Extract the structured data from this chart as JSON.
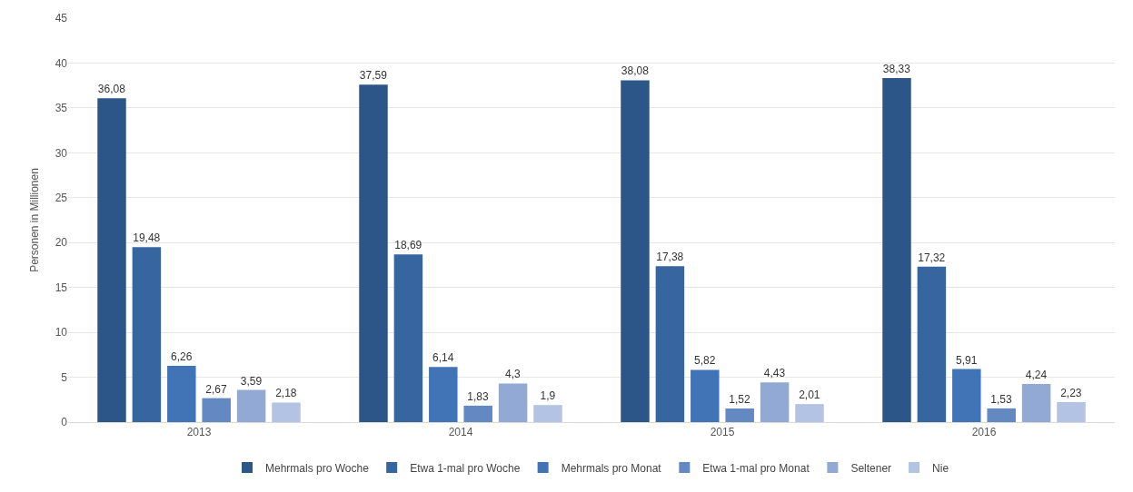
{
  "chart_data": {
    "type": "bar",
    "ylabel": "Personen in Millionen",
    "categories": [
      "2013",
      "2014",
      "2015",
      "2016"
    ],
    "ylim": [
      0,
      45
    ],
    "yticks": [
      0,
      5,
      10,
      15,
      20,
      25,
      30,
      35,
      40,
      45
    ],
    "grid": "y",
    "legend": "bottom",
    "series": [
      {
        "name": "Mehrmals pro Woche",
        "color": "#2c5687",
        "values": [
          36.08,
          37.59,
          38.08,
          38.33
        ],
        "value_labels": [
          "36,08",
          "37,59",
          "38,08",
          "38,33"
        ]
      },
      {
        "name": "Etwa 1-mal pro Woche",
        "color": "#36659f",
        "values": [
          19.48,
          18.69,
          17.38,
          17.32
        ],
        "value_labels": [
          "19,48",
          "18,69",
          "17,38",
          "17,32"
        ]
      },
      {
        "name": "Mehrmals pro Monat",
        "color": "#4174b6",
        "values": [
          6.26,
          6.14,
          5.82,
          5.91
        ],
        "value_labels": [
          "6,26",
          "6,14",
          "5,82",
          "5,91"
        ]
      },
      {
        "name": "Etwa 1-mal pro Monat",
        "color": "#6489c2",
        "values": [
          2.67,
          1.83,
          1.52,
          1.53
        ],
        "value_labels": [
          "2,67",
          "1,83",
          "1,52",
          "1,53"
        ]
      },
      {
        "name": "Seltener",
        "color": "#91a9d3",
        "values": [
          3.59,
          4.3,
          4.43,
          4.24
        ],
        "value_labels": [
          "3,59",
          "4,3",
          "4,43",
          "4,24"
        ]
      },
      {
        "name": "Nie",
        "color": "#b3c3e3",
        "values": [
          2.18,
          1.9,
          2.01,
          2.23
        ],
        "value_labels": [
          "2,18",
          "1,9",
          "2,01",
          "2,23"
        ]
      }
    ]
  }
}
